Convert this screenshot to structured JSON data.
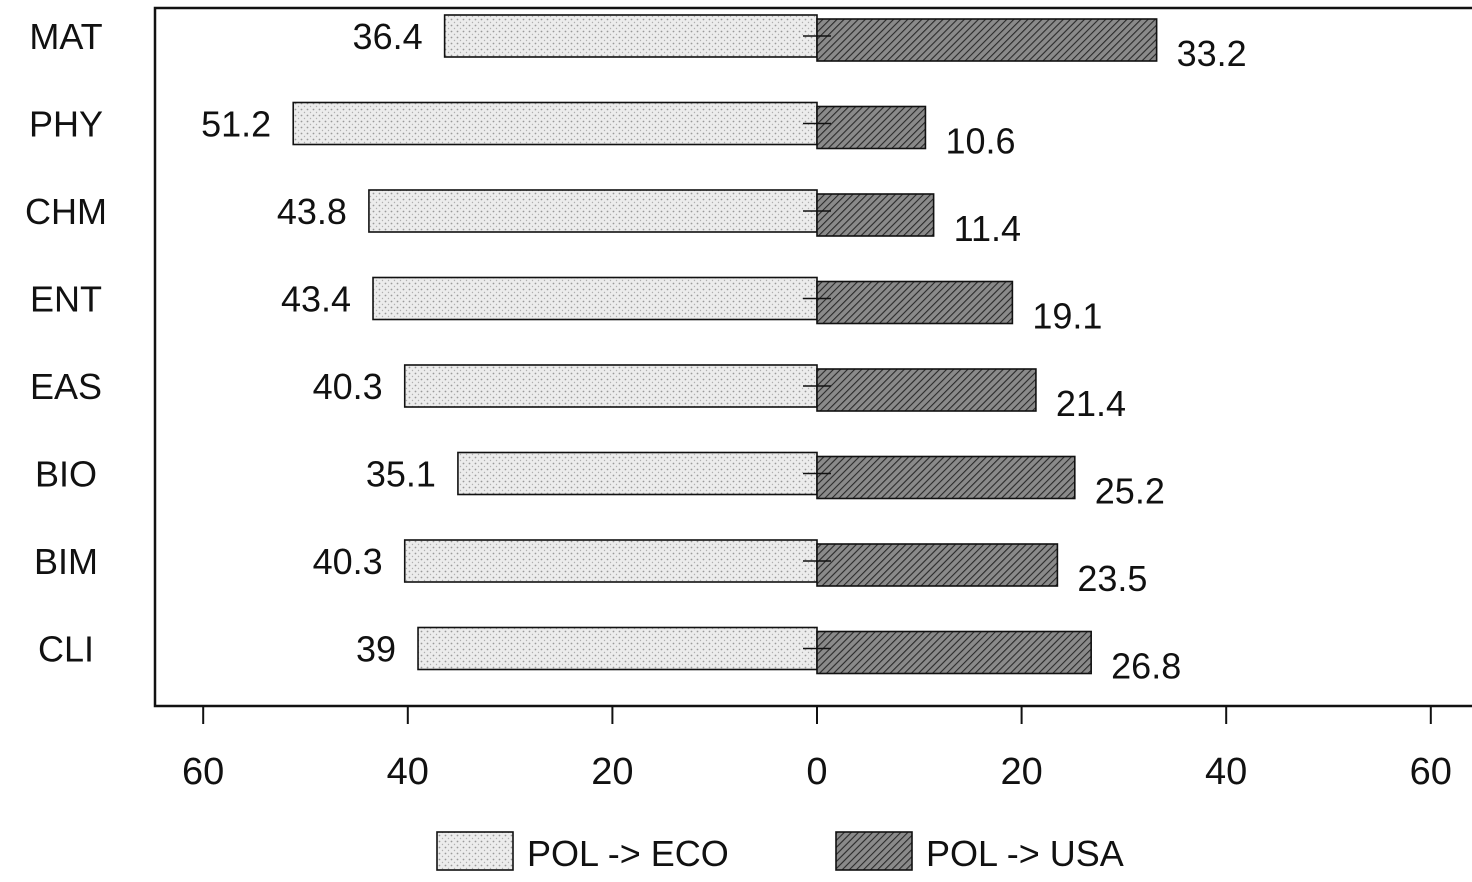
{
  "chart_data": {
    "type": "bar",
    "orientation": "horizontal-diverging",
    "categories": [
      "MAT",
      "PHY",
      "CHM",
      "ENT",
      "EAS",
      "BIO",
      "BIM",
      "CLI"
    ],
    "series": [
      {
        "name": "POL -> ECO",
        "values": [
          36.4,
          51.2,
          43.8,
          43.4,
          40.3,
          35.1,
          40.3,
          39
        ],
        "value_labels": [
          "36.4",
          "51.2",
          "43.8",
          "43.4",
          "40.3",
          "35.1",
          "40.3",
          "39"
        ],
        "direction": "left",
        "fill": "#e2e2e2",
        "pattern": "light-stipple"
      },
      {
        "name": "POL -> USA",
        "values": [
          33.2,
          10.6,
          11.4,
          19.1,
          21.4,
          25.2,
          23.5,
          26.8
        ],
        "value_labels": [
          "33.2",
          "10.6",
          "11.4",
          "19.1",
          "21.4",
          "25.2",
          "23.5",
          "26.8"
        ],
        "direction": "right",
        "fill": "#6e6e6e",
        "pattern": "dense-diagonal-hatch"
      }
    ],
    "xlim": [
      -60,
      60
    ],
    "x_ticks": [
      -60,
      -40,
      -20,
      0,
      20,
      40,
      60
    ],
    "x_tick_labels": [
      "60",
      "40",
      "20",
      "0",
      "20",
      "40",
      "60"
    ],
    "title": "",
    "xlabel": "",
    "ylabel": "",
    "grid": false,
    "legend": {
      "position": "bottom-center",
      "entries": [
        "POL -> ECO",
        "POL -> USA"
      ]
    }
  }
}
